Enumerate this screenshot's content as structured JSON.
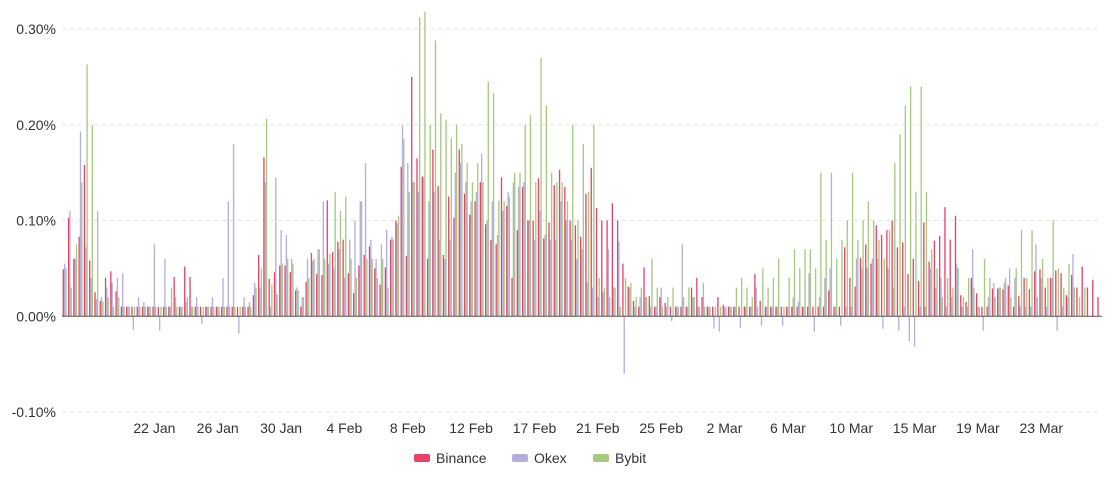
{
  "chart_data": {
    "type": "bar",
    "y_unit": "%",
    "ylim": [
      -0.1,
      0.3
    ],
    "y_ticks": [
      {
        "value": 0.3,
        "label": "0.30%"
      },
      {
        "value": 0.2,
        "label": "0.20%"
      },
      {
        "value": 0.1,
        "label": "0.10%"
      },
      {
        "value": 0.0,
        "label": "0.00%"
      },
      {
        "value": -0.1,
        "label": "-0.10%"
      }
    ],
    "x_ticks": [
      {
        "index": 17,
        "label": "22 Jan"
      },
      {
        "index": 29,
        "label": "26 Jan"
      },
      {
        "index": 41,
        "label": "30 Jan"
      },
      {
        "index": 53,
        "label": "4 Feb"
      },
      {
        "index": 65,
        "label": "8 Feb"
      },
      {
        "index": 77,
        "label": "12 Feb"
      },
      {
        "index": 89,
        "label": "17 Feb"
      },
      {
        "index": 101,
        "label": "21 Feb"
      },
      {
        "index": 113,
        "label": "25 Feb"
      },
      {
        "index": 125,
        "label": "2 Mar"
      },
      {
        "index": 137,
        "label": "6 Mar"
      },
      {
        "index": 149,
        "label": "10 Mar"
      },
      {
        "index": 161,
        "label": "15 Mar"
      },
      {
        "index": 173,
        "label": "19 Mar"
      },
      {
        "index": 185,
        "label": "23 Mar"
      }
    ],
    "grid": true,
    "legend_position": "bottom-center",
    "series": [
      {
        "name": "Binance",
        "color": "#e8426a",
        "values": [
          0.049,
          0.103,
          0.06,
          0.083,
          0.158,
          0.058,
          0.025,
          0.016,
          0.04,
          0.047,
          0.026,
          0.01,
          0.01,
          0.01,
          0.01,
          0.01,
          0.01,
          0.01,
          0.01,
          0.01,
          0.01,
          0.041,
          0.01,
          0.052,
          0.041,
          0.01,
          0.01,
          0.01,
          0.01,
          0.01,
          0.01,
          0.01,
          0.01,
          0.01,
          0.01,
          0.01,
          0.022,
          0.064,
          0.166,
          0.039,
          0.046,
          0.053,
          0.053,
          0.046,
          0.027,
          0.01,
          0.036,
          0.066,
          0.044,
          0.043,
          0.121,
          0.067,
          0.078,
          0.08,
          0.045,
          0.024,
          0.053,
          0.064,
          0.073,
          0.05,
          0.033,
          0.051,
          0.08,
          0.1,
          0.156,
          0.063,
          0.25,
          0.165,
          0.146,
          0.06,
          0.174,
          0.136,
          0.064,
          0.125,
          0.103,
          0.174,
          0.128,
          0.106,
          0.12,
          0.14,
          0.096,
          0.08,
          0.075,
          0.145,
          0.115,
          0.04,
          0.09,
          0.135,
          0.1,
          0.1,
          0.144,
          0.081,
          0.098,
          0.137,
          0.153,
          0.135,
          0.1,
          0.095,
          0.083,
          0.128,
          0.155,
          0.113,
          0.1,
          0.1,
          0.118,
          0.1,
          0.055,
          0.031,
          0.016,
          0.01,
          0.051,
          0.021,
          0.01,
          0.02,
          0.014,
          0.01,
          0.01,
          0.01,
          0.01,
          0.03,
          0.04,
          0.02,
          0.01,
          0.01,
          0.02,
          0.012,
          0.01,
          0.01,
          0.01,
          0.01,
          0.01,
          0.044,
          0.016,
          0.01,
          0.01,
          0.01,
          0.01,
          0.01,
          0.01,
          0.01,
          0.01,
          0.01,
          0.01,
          0.01,
          0.01,
          0.027,
          0.01,
          0.01,
          0.072,
          0.04,
          0.031,
          0.061,
          0.075,
          0.055,
          0.095,
          0.085,
          0.09,
          0.1,
          0.072,
          0.077,
          0.044,
          0.06,
          0.037,
          0.098,
          0.057,
          0.079,
          0.084,
          0.114,
          0.08,
          0.105,
          0.022,
          0.015,
          0.04,
          0.024,
          0.01,
          0.01,
          0.029,
          0.029,
          0.028,
          0.032,
          0.01,
          0.021,
          0.04,
          0.028,
          0.047,
          0.049,
          0.03,
          0.04,
          0.048,
          0.045,
          0.022,
          0.043,
          0.03,
          0.052,
          0.03,
          0.038,
          0.02
        ],
        "labels": []
      },
      {
        "name": "Okex",
        "color": "#b3aee0",
        "values": [
          0.055,
          0.11,
          0.06,
          0.193,
          0.072,
          0.04,
          0.018,
          0.02,
          0.03,
          0.035,
          0.04,
          0.045,
          0.01,
          -0.014,
          0.02,
          0.015,
          0.01,
          0.075,
          -0.015,
          0.06,
          0.01,
          0.02,
          0.01,
          0.015,
          0.01,
          0.02,
          -0.008,
          0.01,
          0.02,
          0.01,
          0.04,
          0.12,
          0.18,
          -0.018,
          0.02,
          0.015,
          0.035,
          0.03,
          0.14,
          0.01,
          0.145,
          0.09,
          0.085,
          0.06,
          0.03,
          0.02,
          0.06,
          0.058,
          0.07,
          0.12,
          0.055,
          0.05,
          0.07,
          0.04,
          0.08,
          0.1,
          0.12,
          0.16,
          0.08,
          0.06,
          0.075,
          0.09,
          0.083,
          0.097,
          0.2,
          0.16,
          0.14,
          0.13,
          0.145,
          0.12,
          0.13,
          0.08,
          0.06,
          0.08,
          0.15,
          0.16,
          0.14,
          0.12,
          0.13,
          0.17,
          0.1,
          0.12,
          0.085,
          0.11,
          0.13,
          0.14,
          0.135,
          0.14,
          0.1,
          0.08,
          0.11,
          0.085,
          0.08,
          0.08,
          0.12,
          0.1,
          0.08,
          0.06,
          0.07,
          0.035,
          0.03,
          0.02,
          0.025,
          0.07,
          0.03,
          0.078,
          -0.06,
          0.03,
          0.01,
          0.02,
          0.02,
          0.01,
          0.01,
          0.03,
          0.01,
          -0.005,
          0.01,
          0.075,
          0.01,
          0.02,
          0.01,
          0.035,
          0.01,
          -0.013,
          -0.016,
          0.01,
          0.01,
          0.01,
          -0.012,
          0.01,
          0.01,
          0.03,
          -0.01,
          0.01,
          0.01,
          0.01,
          -0.01,
          0.01,
          0.02,
          0.015,
          0.01,
          0.045,
          -0.016,
          0.02,
          0.04,
          0.05,
          0.01,
          -0.01,
          0.01,
          0.01,
          0.06,
          0.05,
          0.05,
          0.06,
          0.06,
          -0.013,
          0.05,
          0.03,
          -0.015,
          0.01,
          -0.026,
          -0.032,
          0.01,
          0.01,
          0.05,
          0.03,
          0.04,
          0.01,
          0.02,
          0.055,
          0.01,
          0.01,
          0.07,
          0.01,
          -0.015,
          0.02,
          0.035,
          0.03,
          0.035,
          0.05,
          0.04,
          0.01,
          0.01,
          0.01,
          0.075,
          0.04,
          0.01,
          0.04,
          -0.015,
          0.01,
          0.02,
          0.065
        ]
      },
      {
        "name": "Bybit",
        "color": "#a5c97f",
        "values": [
          0.05,
          0.03,
          0.075,
          0.14,
          0.263,
          0.2,
          0.11,
          0.015,
          0.02,
          0.01,
          0.02,
          0.01,
          0.01,
          0.01,
          0.01,
          0.01,
          0.01,
          0.01,
          0.01,
          0.01,
          0.03,
          0.01,
          0.01,
          0.02,
          0.01,
          0.01,
          0.01,
          0.01,
          0.01,
          0.01,
          0.01,
          0.01,
          0.01,
          0.01,
          0.01,
          0.01,
          0.03,
          0.05,
          0.206,
          0.033,
          0.023,
          0.055,
          0.06,
          0.055,
          0.027,
          0.02,
          0.04,
          0.06,
          0.07,
          0.06,
          0.065,
          0.13,
          0.11,
          0.125,
          0.06,
          0.04,
          0.12,
          0.06,
          0.06,
          0.04,
          0.06,
          0.03,
          0.08,
          0.105,
          0.185,
          0.13,
          0.14,
          0.312,
          0.318,
          0.2,
          0.288,
          0.212,
          0.205,
          0.186,
          0.2,
          0.18,
          0.16,
          0.14,
          0.16,
          0.14,
          0.245,
          0.233,
          0.121,
          0.12,
          0.125,
          0.15,
          0.15,
          0.2,
          0.21,
          0.14,
          0.27,
          0.22,
          0.15,
          0.14,
          0.14,
          0.12,
          0.2,
          0.1,
          0.18,
          0.13,
          0.2,
          0.04,
          0.03,
          0.02,
          0.03,
          0.01,
          0.04,
          0.035,
          0.02,
          0.03,
          0.02,
          0.06,
          0.03,
          0.01,
          0.02,
          0.03,
          0.01,
          0.02,
          0.03,
          0.02,
          0.01,
          0.01,
          0.01,
          0.01,
          0.01,
          0.01,
          0.01,
          0.03,
          0.04,
          0.03,
          0.02,
          0.01,
          0.05,
          0.03,
          0.04,
          0.06,
          0.01,
          0.04,
          0.07,
          0.05,
          0.07,
          0.07,
          0.05,
          0.15,
          0.08,
          0.15,
          0.06,
          0.08,
          0.1,
          0.15,
          0.08,
          0.1,
          0.12,
          0.1,
          0.08,
          0.06,
          0.09,
          0.16,
          0.19,
          0.22,
          0.24,
          0.13,
          0.24,
          0.13,
          0.07,
          0.05,
          0.02,
          0.04,
          0.03,
          0.05,
          0.02,
          0.04,
          0.03,
          0.01,
          0.06,
          0.04,
          0.02,
          0.03,
          0.04,
          0.02,
          0.05,
          0.09,
          0.04,
          0.09,
          0.02,
          0.06,
          0.04,
          0.1,
          0.05,
          0.03,
          0.055,
          0.03,
          0.02,
          0.03
        ]
      }
    ]
  }
}
